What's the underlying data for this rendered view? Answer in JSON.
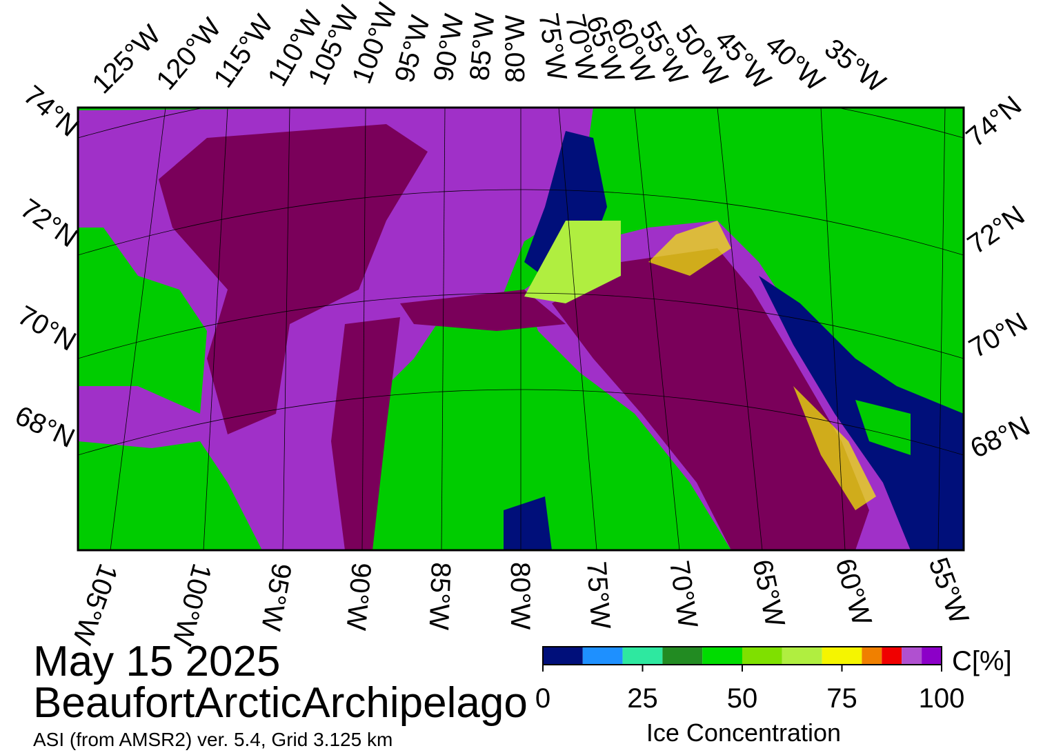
{
  "date": "May 15 2025",
  "region": "BeaufortArcticArchipelago",
  "source": "ASI (from AMSR2) ver. 5.4,  Grid 3.125 km",
  "top_lon_labels": [
    "125°W",
    "120°W",
    "115°W",
    "110°W",
    "105°W",
    "100°W",
    "95°W",
    "90°W",
    "85°W",
    "80°W",
    "75°W",
    "70°W",
    "65°W",
    "60°W",
    "55°W",
    "50°W",
    "45°W",
    "40°W",
    "35°W"
  ],
  "bottom_lon_labels": [
    "105°W",
    "100°W",
    "95°W",
    "90°W",
    "85°W",
    "80°W",
    "75°W",
    "70°W",
    "65°W",
    "60°W",
    "55°W"
  ],
  "left_lat_labels": [
    "74°N",
    "72°N",
    "70°N",
    "68°N"
  ],
  "right_lat_labels": [
    "74°N",
    "72°N",
    "70°N",
    "68°N"
  ],
  "colorbar": {
    "unit": "C[%]",
    "label": "Ice Concentration",
    "bounds": [
      0,
      10,
      20,
      30,
      40,
      50,
      60,
      70,
      80,
      85,
      90,
      95,
      100
    ],
    "colors": [
      "#000f7a",
      "#1e90ff",
      "#2ee8a0",
      "#228b22",
      "#00dc00",
      "#7fe000",
      "#b0ee40",
      "#f5f500",
      "#f08000",
      "#f00000",
      "#b050d0",
      "#8c00c8"
    ],
    "ticks": [
      0,
      25,
      50,
      75,
      100
    ]
  }
}
